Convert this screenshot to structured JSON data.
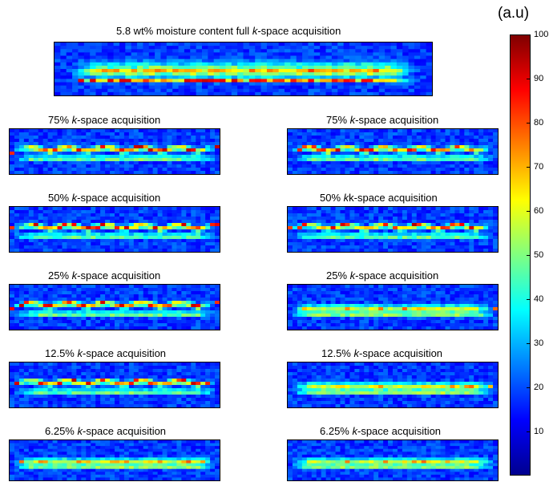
{
  "panels": [
    {
      "pre": "5.8 wt% moisture content full ",
      "k": "k",
      "post": "-space acquisition",
      "pattern": "full"
    },
    {
      "pre": "75% ",
      "k": "k",
      "post": "-space acquisition",
      "pattern": "wavy"
    },
    {
      "pre": "75% ",
      "k": "k",
      "post": "-space acquisition",
      "pattern": "wavy"
    },
    {
      "pre": "50% ",
      "k": "k",
      "post": "-space acquisition",
      "pattern": "wavy"
    },
    {
      "pre": "50% ",
      "k": "k",
      "post": "k-space acquisition",
      "pattern": "wavy"
    },
    {
      "pre": "25% ",
      "k": "k",
      "post": "-space acquisition",
      "pattern": "wavy"
    },
    {
      "pre": "25% ",
      "k": "k",
      "post": "-space acquisition",
      "pattern": "smooth"
    },
    {
      "pre": "12.5% ",
      "k": "k",
      "post": "-space acquisition",
      "pattern": "wavy"
    },
    {
      "pre": "12.5% ",
      "k": "k",
      "post": "-space acquisition",
      "pattern": "smooth"
    },
    {
      "pre": "6.25% ",
      "k": "k",
      "post": "-space acquisition",
      "pattern": "smooth"
    },
    {
      "pre": "6.25% ",
      "k": "k",
      "post": "-space acquisition",
      "pattern": "smooth"
    }
  ],
  "colorbar": {
    "unit": "(a.u)",
    "min": 0,
    "max": 100,
    "ticks": [
      "100",
      "90",
      "80",
      "70",
      "60",
      "50",
      "40",
      "30",
      "20",
      "10"
    ],
    "colors": [
      "#00008f",
      "#0000ff",
      "#0080ff",
      "#00ffff",
      "#80ff80",
      "#ffff00",
      "#ff8000",
      "#ff0000",
      "#800000"
    ]
  }
}
